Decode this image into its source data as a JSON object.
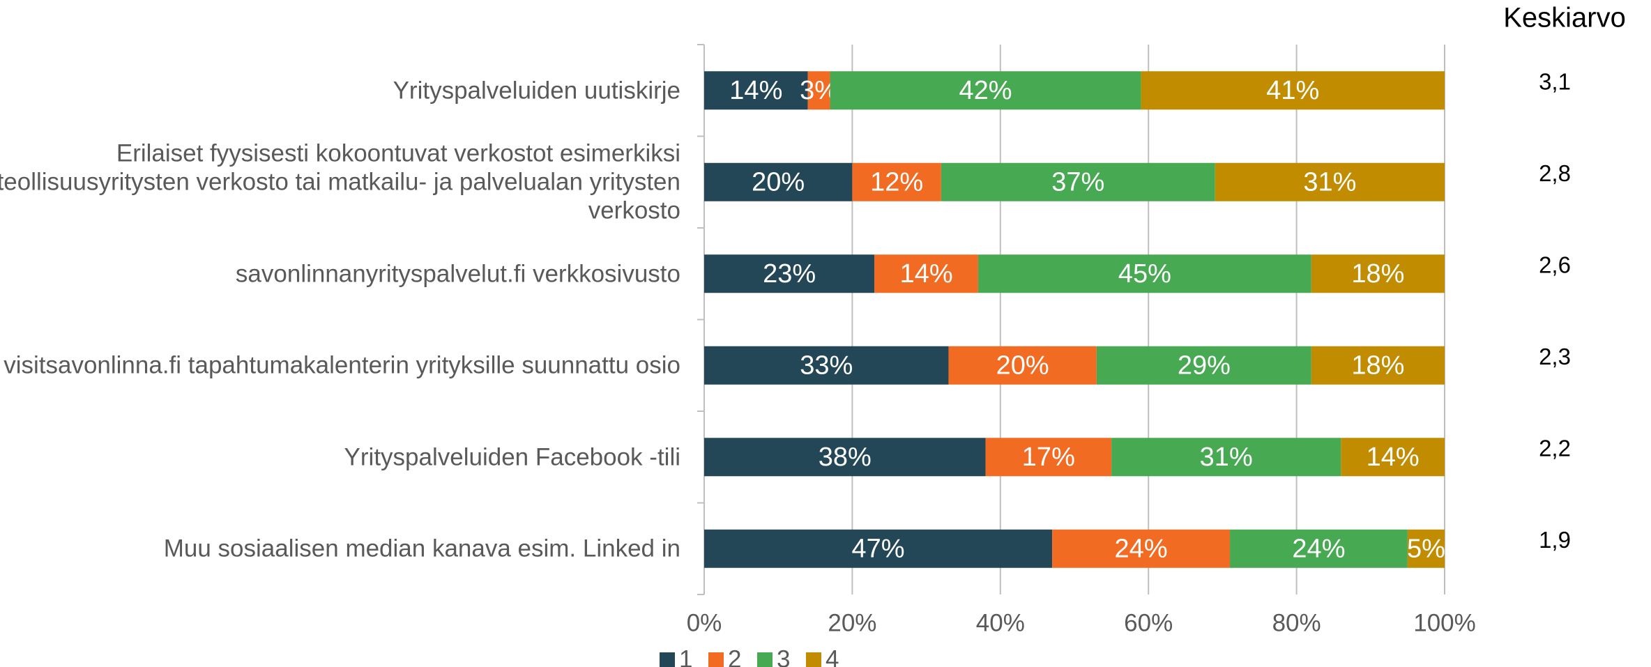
{
  "chart_data": {
    "type": "stacked_barh",
    "categories": [
      "Yrityspalveluiden uutiskirje",
      "Erilaiset fyysisesti kokoontuvat verkostot esimerkiksi teollisuusyritysten verkosto tai matkailu- ja palvelualan yritysten verkosto",
      "savonlinnanyrityspalvelut.fi verkkosivusto",
      "visitsavonlinna.fi tapahtumakalenterin yrityksille suunnattu osio",
      "Yrityspalveluiden Facebook -tili",
      "Muu sosiaalisen median kanava esim. Linked in"
    ],
    "series": [
      {
        "name": "1",
        "color": "#234756",
        "values": [
          14,
          20,
          23,
          33,
          38,
          47
        ],
        "value_labels": [
          "14%",
          "20%",
          "23%",
          "33%",
          "38%",
          "47%"
        ]
      },
      {
        "name": "2",
        "color": "#f26b22",
        "values": [
          3,
          12,
          14,
          20,
          17,
          24
        ],
        "value_labels": [
          "3%",
          "12%",
          "14%",
          "20%",
          "17%",
          "24%"
        ]
      },
      {
        "name": "3",
        "color": "#47a952",
        "values": [
          42,
          37,
          45,
          29,
          31,
          24
        ],
        "value_labels": [
          "42%",
          "37%",
          "45%",
          "29%",
          "31%",
          "24%"
        ]
      },
      {
        "name": "4",
        "color": "#c18c00",
        "values": [
          41,
          31,
          18,
          18,
          14,
          5
        ],
        "value_labels": [
          "41%",
          "31%",
          "18%",
          "18%",
          "14%",
          "5%"
        ]
      }
    ],
    "xlim": [
      0,
      100
    ],
    "xticks": [
      {
        "value": 0,
        "label": "0%"
      },
      {
        "value": 20,
        "label": "20%"
      },
      {
        "value": 40,
        "label": "40%"
      },
      {
        "value": 60,
        "label": "60%"
      },
      {
        "value": 80,
        "label": "80%"
      },
      {
        "value": 100,
        "label": "100%"
      }
    ],
    "grid": true,
    "legend": "bottom",
    "side_column": {
      "title": "Keskiarvo",
      "values": [
        "3,1",
        "2,8",
        "2,6",
        "2,3",
        "2,2",
        "1,9"
      ]
    }
  }
}
